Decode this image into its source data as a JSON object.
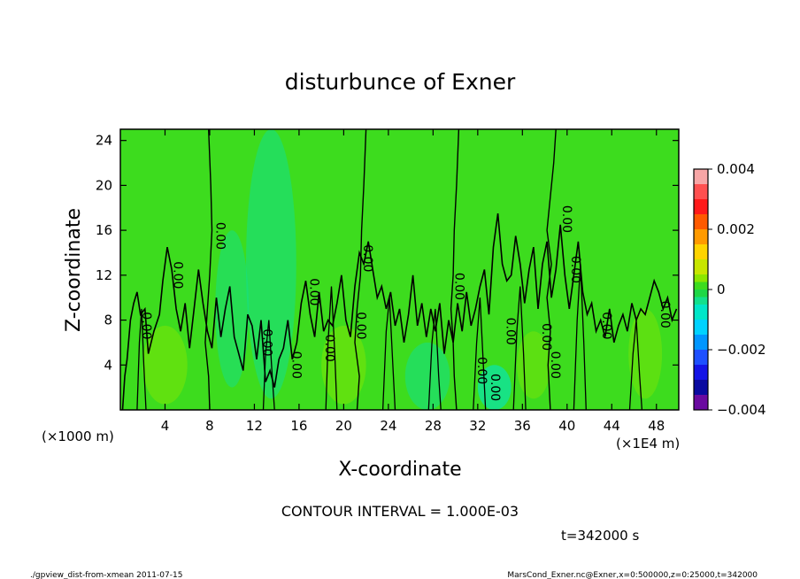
{
  "chart_data": {
    "type": "contour",
    "title": "disturbunce of Exner",
    "xlabel": "X-coordinate",
    "ylabel": "Z-coordinate",
    "x_unit_left": "(×1000 m)",
    "x_unit_right": "(×1E4 m)",
    "xlim": [
      0,
      50
    ],
    "ylim": [
      0,
      25
    ],
    "xticks": [
      4,
      8,
      12,
      16,
      20,
      24,
      28,
      32,
      36,
      40,
      44,
      48
    ],
    "yticks": [
      4,
      8,
      12,
      16,
      20,
      24
    ],
    "colorbar": {
      "range": [
        -0.004,
        0.004
      ],
      "tick_labels": [
        {
          "value": 0.004,
          "label": "0.004"
        },
        {
          "value": 0.002,
          "label": "0.002"
        },
        {
          "value": 0,
          "label": "0"
        },
        {
          "value": -0.002,
          "label": "−0.002"
        },
        {
          "value": -0.004,
          "label": "−0.004"
        }
      ],
      "levels": [
        {
          "from": 0.0035,
          "to": 0.004,
          "color": "#f7a6a6"
        },
        {
          "from": 0.003,
          "to": 0.0035,
          "color": "#ff5050"
        },
        {
          "from": 0.0025,
          "to": 0.003,
          "color": "#ff1a1a"
        },
        {
          "from": 0.002,
          "to": 0.0025,
          "color": "#ff5a00"
        },
        {
          "from": 0.0015,
          "to": 0.002,
          "color": "#ff9a00"
        },
        {
          "from": 0.001,
          "to": 0.0015,
          "color": "#ffd400"
        },
        {
          "from": 0.0005,
          "to": 0.001,
          "color": "#c8e600"
        },
        {
          "from": 0.00025,
          "to": 0.0005,
          "color": "#8ce600"
        },
        {
          "from": 0,
          "to": 0.00025,
          "color": "#3ddc1e"
        },
        {
          "from": -0.00025,
          "to": 0,
          "color": "#1ed746"
        },
        {
          "from": -0.0005,
          "to": -0.00025,
          "color": "#12e08c"
        },
        {
          "from": -0.001,
          "to": -0.0005,
          "color": "#00e6c8"
        },
        {
          "from": -0.0015,
          "to": -0.001,
          "color": "#00d2ff"
        },
        {
          "from": -0.002,
          "to": -0.0015,
          "color": "#0096ff"
        },
        {
          "from": -0.0025,
          "to": -0.002,
          "color": "#1e50ff"
        },
        {
          "from": -0.003,
          "to": -0.0025,
          "color": "#1414e6"
        },
        {
          "from": -0.0035,
          "to": -0.003,
          "color": "#0a0aa0"
        },
        {
          "from": -0.004,
          "to": -0.0035,
          "color": "#6a0aa0"
        }
      ]
    },
    "background_color": "#3ddc1e",
    "contour_level": 0,
    "contour_label": "0.00",
    "contour_interval_text": "CONTOUR INTERVAL = 1.000E-03",
    "time_text": "t=342000 s",
    "zero_contours": [
      [
        [
          7.9,
          25
        ],
        [
          8.1,
          20
        ],
        [
          8.2,
          16
        ],
        [
          8.0,
          12
        ],
        [
          7.8,
          9
        ],
        [
          7.6,
          6
        ],
        [
          7.9,
          3
        ],
        [
          8.0,
          0
        ]
      ],
      [
        [
          22.0,
          25
        ],
        [
          21.8,
          20
        ],
        [
          21.6,
          16
        ],
        [
          21.5,
          12
        ],
        [
          21.2,
          9
        ],
        [
          21.0,
          6
        ],
        [
          21.4,
          3
        ],
        [
          21.2,
          0
        ]
      ],
      [
        [
          30.3,
          25
        ],
        [
          30.1,
          20
        ],
        [
          29.9,
          16
        ],
        [
          29.8,
          12
        ],
        [
          29.6,
          9
        ],
        [
          29.8,
          6
        ],
        [
          29.9,
          3
        ],
        [
          30.1,
          0
        ]
      ],
      [
        [
          39.0,
          25
        ],
        [
          38.8,
          22
        ],
        [
          38.5,
          19
        ],
        [
          38.2,
          16
        ],
        [
          38.6,
          13
        ],
        [
          38.2,
          10
        ],
        [
          38.5,
          7
        ],
        [
          38.3,
          4
        ],
        [
          38.5,
          0
        ]
      ]
    ],
    "ridge_contour": [
      [
        0.2,
        0
      ],
      [
        0.4,
        3
      ],
      [
        0.6,
        4.5
      ],
      [
        0.9,
        8
      ],
      [
        1.2,
        9.5
      ],
      [
        1.5,
        10.5
      ],
      [
        1.8,
        8.5
      ],
      [
        2.2,
        9
      ],
      [
        2.5,
        5
      ],
      [
        3.0,
        7
      ],
      [
        3.5,
        8.5
      ],
      [
        3.8,
        11.5
      ],
      [
        4.2,
        14.5
      ],
      [
        4.6,
        12.5
      ],
      [
        5.0,
        9
      ],
      [
        5.4,
        7
      ],
      [
        5.8,
        9.5
      ],
      [
        6.2,
        5.5
      ],
      [
        6.6,
        9
      ],
      [
        7.0,
        12.5
      ],
      [
        7.4,
        9.5
      ],
      [
        7.8,
        7
      ],
      [
        8.2,
        5.5
      ],
      [
        8.6,
        10
      ],
      [
        9.0,
        6.5
      ],
      [
        9.4,
        9
      ],
      [
        9.8,
        11
      ],
      [
        10.2,
        6.5
      ],
      [
        10.6,
        5
      ],
      [
        11.0,
        3.5
      ],
      [
        11.4,
        8.5
      ],
      [
        11.8,
        7.5
      ],
      [
        12.2,
        4.5
      ],
      [
        12.6,
        8
      ],
      [
        13.0,
        2.5
      ],
      [
        13.4,
        3.5
      ],
      [
        13.8,
        2
      ],
      [
        14.2,
        4.5
      ],
      [
        14.6,
        5.5
      ],
      [
        15.0,
        8
      ],
      [
        15.4,
        4.5
      ],
      [
        15.8,
        6
      ],
      [
        16.2,
        9.5
      ],
      [
        16.6,
        11.5
      ],
      [
        17.0,
        8.5
      ],
      [
        17.4,
        6.5
      ],
      [
        17.8,
        10.5
      ],
      [
        18.2,
        7
      ],
      [
        18.6,
        8
      ],
      [
        19.0,
        7.5
      ],
      [
        19.4,
        9.5
      ],
      [
        19.8,
        12
      ],
      [
        20.2,
        8
      ],
      [
        20.6,
        6.5
      ],
      [
        21.0,
        11
      ],
      [
        21.4,
        14
      ],
      [
        21.8,
        13
      ],
      [
        22.2,
        15
      ],
      [
        22.6,
        12.5
      ],
      [
        23.0,
        10
      ],
      [
        23.4,
        11
      ],
      [
        23.8,
        9
      ],
      [
        24.2,
        10.5
      ],
      [
        24.6,
        7.5
      ],
      [
        25.0,
        9
      ],
      [
        25.4,
        6
      ],
      [
        25.8,
        8.5
      ],
      [
        26.2,
        12
      ],
      [
        26.6,
        7.5
      ],
      [
        27.0,
        9.5
      ],
      [
        27.4,
        6.5
      ],
      [
        27.8,
        9
      ],
      [
        28.2,
        7
      ],
      [
        28.6,
        9.5
      ],
      [
        29.0,
        5
      ],
      [
        29.4,
        8
      ],
      [
        29.8,
        6
      ],
      [
        30.2,
        9.5
      ],
      [
        30.6,
        7
      ],
      [
        31.0,
        10.5
      ],
      [
        31.4,
        7.5
      ],
      [
        31.8,
        9
      ],
      [
        32.2,
        11
      ],
      [
        32.6,
        12.5
      ],
      [
        33.0,
        8.5
      ],
      [
        33.4,
        14.5
      ],
      [
        33.8,
        17.5
      ],
      [
        34.2,
        13
      ],
      [
        34.6,
        11.5
      ],
      [
        35.0,
        12
      ],
      [
        35.4,
        15.5
      ],
      [
        35.8,
        13
      ],
      [
        36.2,
        9.5
      ],
      [
        36.6,
        12.5
      ],
      [
        37.0,
        14.5
      ],
      [
        37.4,
        9
      ],
      [
        37.8,
        13
      ],
      [
        38.2,
        15
      ],
      [
        38.6,
        10
      ],
      [
        39.0,
        12.5
      ],
      [
        39.4,
        16.5
      ],
      [
        39.8,
        12
      ],
      [
        40.2,
        9
      ],
      [
        40.6,
        12
      ],
      [
        41.0,
        15
      ],
      [
        41.4,
        10.5
      ],
      [
        41.8,
        8.5
      ],
      [
        42.2,
        9.5
      ],
      [
        42.6,
        7
      ],
      [
        43.0,
        8
      ],
      [
        43.4,
        6.5
      ],
      [
        43.8,
        9
      ],
      [
        44.2,
        6
      ],
      [
        44.6,
        7.5
      ],
      [
        45.0,
        8.5
      ],
      [
        45.4,
        7
      ],
      [
        45.8,
        9.5
      ],
      [
        46.2,
        8
      ],
      [
        46.6,
        9
      ],
      [
        47.0,
        8.5
      ],
      [
        47.4,
        10
      ],
      [
        47.8,
        11.5
      ],
      [
        48.2,
        10.5
      ],
      [
        48.6,
        9
      ],
      [
        49.0,
        10
      ],
      [
        49.4,
        8
      ],
      [
        49.8,
        9
      ]
    ],
    "tall_spikes": [
      [
        [
          1.5,
          0
        ],
        [
          1.7,
          6
        ],
        [
          1.9,
          9
        ],
        [
          2.1,
          4
        ],
        [
          2.3,
          0
        ]
      ],
      [
        [
          12.8,
          0
        ],
        [
          13.0,
          5
        ],
        [
          13.3,
          8
        ],
        [
          13.6,
          3
        ],
        [
          13.8,
          0
        ]
      ],
      [
        [
          18.4,
          0
        ],
        [
          18.6,
          6
        ],
        [
          18.9,
          11
        ],
        [
          19.2,
          5
        ],
        [
          19.4,
          0
        ]
      ],
      [
        [
          23.5,
          0
        ],
        [
          23.8,
          7
        ],
        [
          24.1,
          10
        ],
        [
          24.4,
          4
        ],
        [
          24.6,
          0
        ]
      ],
      [
        [
          27.6,
          0
        ],
        [
          27.9,
          6
        ],
        [
          28.2,
          9
        ],
        [
          28.5,
          3
        ],
        [
          28.7,
          0
        ]
      ],
      [
        [
          31.6,
          0
        ],
        [
          31.9,
          6
        ],
        [
          32.2,
          10
        ],
        [
          32.5,
          4
        ],
        [
          32.7,
          0
        ]
      ],
      [
        [
          35.2,
          0
        ],
        [
          35.5,
          7
        ],
        [
          35.8,
          11
        ],
        [
          36.1,
          5
        ],
        [
          36.3,
          0
        ]
      ],
      [
        [
          40.6,
          0
        ],
        [
          40.9,
          8
        ],
        [
          41.2,
          13
        ],
        [
          41.5,
          6
        ],
        [
          41.7,
          0
        ]
      ],
      [
        [
          45.6,
          0
        ],
        [
          45.9,
          5
        ],
        [
          46.2,
          8
        ],
        [
          46.5,
          3
        ],
        [
          46.7,
          0
        ]
      ]
    ],
    "shading": [
      {
        "x": 13.5,
        "z": 13,
        "w": 4.5,
        "h": 24,
        "color": "#12e08c",
        "opacity": 0.55
      },
      {
        "x": 10.0,
        "z": 9,
        "w": 3.0,
        "h": 14,
        "color": "#12e08c",
        "opacity": 0.5
      },
      {
        "x": 27.5,
        "z": 3,
        "w": 4.0,
        "h": 6,
        "color": "#12e08c",
        "opacity": 0.55
      },
      {
        "x": 33.5,
        "z": 2,
        "w": 3.0,
        "h": 4,
        "color": "#00e6c8",
        "opacity": 0.6
      },
      {
        "x": 4.0,
        "z": 4,
        "w": 4.0,
        "h": 7,
        "color": "#8ce600",
        "opacity": 0.45
      },
      {
        "x": 20.0,
        "z": 4,
        "w": 4.0,
        "h": 7,
        "color": "#8ce600",
        "opacity": 0.45
      },
      {
        "x": 37.0,
        "z": 4,
        "w": 3.0,
        "h": 6,
        "color": "#8ce600",
        "opacity": 0.4
      },
      {
        "x": 47.0,
        "z": 5,
        "w": 3.0,
        "h": 8,
        "color": "#8ce600",
        "opacity": 0.4
      }
    ],
    "labels_at": [
      [
        2.0,
        7.5,
        90
      ],
      [
        4.8,
        12,
        90
      ],
      [
        8.6,
        15.5,
        90
      ],
      [
        12.8,
        6,
        90
      ],
      [
        15.4,
        4,
        90
      ],
      [
        17.0,
        10.5,
        90
      ],
      [
        18.4,
        5.5,
        90
      ],
      [
        21.8,
        13.5,
        90
      ],
      [
        21.2,
        7.5,
        90
      ],
      [
        30.0,
        11,
        90
      ],
      [
        32.0,
        3.5,
        90
      ],
      [
        33.2,
        2,
        90
      ],
      [
        34.6,
        7,
        90
      ],
      [
        37.8,
        6.5,
        90
      ],
      [
        38.6,
        4,
        90
      ],
      [
        39.6,
        17,
        90
      ],
      [
        40.4,
        12.5,
        90
      ],
      [
        43.2,
        7.5,
        90
      ],
      [
        48.4,
        8.5,
        90
      ]
    ]
  },
  "footer": {
    "left": "./gpview_dist-from-xmean  2011-07-15",
    "right": "MarsCond_Exner.nc@Exner,x=0:500000,z=0:25000,t=342000"
  }
}
